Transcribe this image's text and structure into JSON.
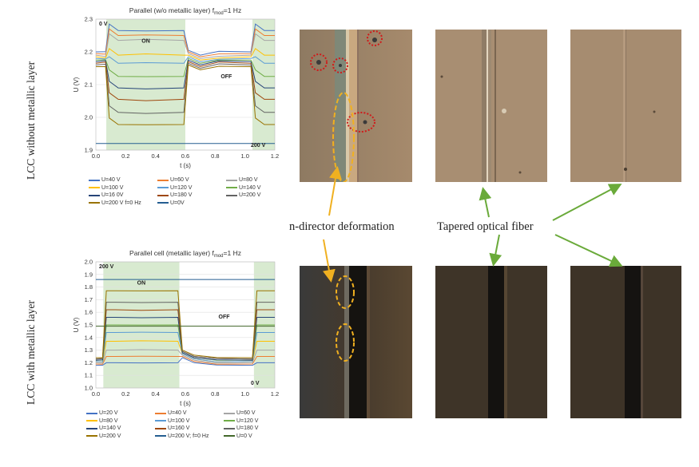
{
  "side_labels": {
    "top": "LCC without metallic layer",
    "bottom": "LCC with metallic layer"
  },
  "captions": {
    "left": "n-director deformation",
    "right": "Tapered optical fiber"
  },
  "colors": {
    "on_region": "#d8ead0",
    "photo_top": "#a0866a",
    "photo_bottom": "#3b3226",
    "dotted_circle": "#d01a1a",
    "dashed_ellipse": "#f0b020",
    "arrow_yellow": "#f0b020",
    "arrow_green": "#6aaa3a"
  },
  "chart_data": [
    {
      "type": "line",
      "title_main": "Parallel (w/o metallic layer) f",
      "title_sub": "mod",
      "title_tail": "=1 Hz",
      "xlabel": "t (s)",
      "ylabel": "U (V)",
      "xlim": [
        0.0,
        1.2
      ],
      "ylim": [
        1.9,
        2.3
      ],
      "xticks": [
        "0.0",
        "0.2",
        "0.4",
        "0.6",
        "0.8",
        "1.0",
        "1.2"
      ],
      "yticks": [
        "1.9",
        "2.0",
        "2.1",
        "2.2",
        "2.3"
      ],
      "on_regions": [
        [
          0.07,
          0.6
        ],
        [
          1.05,
          1.2
        ]
      ],
      "annotations": {
        "top_left": "0 V",
        "on": "ON",
        "off": "OFF",
        "bottom_right": "200 V"
      },
      "legend": [
        "U=40 V",
        "U=60 V",
        "U=80 V",
        "U=100 V",
        "U=120 V",
        "U=140 V",
        "U=16 0V",
        "U=180 V",
        "U=200 V",
        "U=200 V f=0 Hz",
        "U=0V"
      ],
      "series": [
        {
          "name": "U=40 V",
          "color": "#4472c4",
          "on": 2.265,
          "off": 2.2
        },
        {
          "name": "U=60 V",
          "color": "#ed7d31",
          "on": 2.25,
          "off": 2.195
        },
        {
          "name": "U=80 V",
          "color": "#a5a5a5",
          "on": 2.235,
          "off": 2.19
        },
        {
          "name": "U=100 V",
          "color": "#ffc000",
          "on": 2.19,
          "off": 2.185
        },
        {
          "name": "U=120 V",
          "color": "#5b9bd5",
          "on": 2.165,
          "off": 2.18
        },
        {
          "name": "U=140 V",
          "color": "#70ad47",
          "on": 2.125,
          "off": 2.175
        },
        {
          "name": "U=16 0V",
          "color": "#264478",
          "on": 2.09,
          "off": 2.17
        },
        {
          "name": "U=180 V",
          "color": "#9e480e",
          "on": 2.055,
          "off": 2.165
        },
        {
          "name": "U=200 V",
          "color": "#636363",
          "on": 2.015,
          "off": 2.16
        },
        {
          "name": "U=200 V f=0 Hz",
          "color": "#997300",
          "on": 1.978,
          "off": 2.155
        },
        {
          "name": "U=0V",
          "color": "#255e91",
          "on": 1.92,
          "off": 1.92
        }
      ]
    },
    {
      "type": "line",
      "title_main": "Parallel cell (metallic layer) f",
      "title_sub": "mod",
      "title_tail": "=1 Hz",
      "xlabel": "t (s)",
      "ylabel": "U (V)",
      "xlim": [
        0.0,
        1.2
      ],
      "ylim": [
        1.0,
        2.0
      ],
      "xticks": [
        "0.0",
        "0.2",
        "0.4",
        "0.6",
        "0.8",
        "1.0",
        "1.2"
      ],
      "yticks": [
        "1.0",
        "1.1",
        "1.2",
        "1.3",
        "1.4",
        "1.5",
        "1.6",
        "1.7",
        "1.8",
        "1.9",
        "2.0"
      ],
      "on_regions": [
        [
          0.05,
          0.56
        ],
        [
          1.06,
          1.2
        ]
      ],
      "annotations": {
        "top_left": "200 V",
        "on": "ON",
        "off": "OFF",
        "bottom_right": "0 V"
      },
      "legend": [
        "U=20 V",
        "U=40 V",
        "U=60 V",
        "U=80 V",
        "U=100 V",
        "U=120 V",
        "U=140 V",
        "U=160 V",
        "U=180 V",
        "U=200 V",
        "U=200 V; f=0 Hz",
        "U=0 V"
      ],
      "series": [
        {
          "name": "U=20 V",
          "color": "#4472c4",
          "on": 1.2,
          "off": 1.18
        },
        {
          "name": "U=40 V",
          "color": "#ed7d31",
          "on": 1.25,
          "off": 1.19
        },
        {
          "name": "U=60 V",
          "color": "#a5a5a5",
          "on": 1.3,
          "off": 1.2
        },
        {
          "name": "U=80 V",
          "color": "#ffc000",
          "on": 1.37,
          "off": 1.21
        },
        {
          "name": "U=100 V",
          "color": "#5b9bd5",
          "on": 1.44,
          "off": 1.21
        },
        {
          "name": "U=120 V",
          "color": "#70ad47",
          "on": 1.5,
          "off": 1.22
        },
        {
          "name": "U=140 V",
          "color": "#264478",
          "on": 1.56,
          "off": 1.22
        },
        {
          "name": "U=160 V",
          "color": "#9e480e",
          "on": 1.62,
          "off": 1.23
        },
        {
          "name": "U=180 V",
          "color": "#636363",
          "on": 1.68,
          "off": 1.23
        },
        {
          "name": "U=200 V",
          "color": "#997300",
          "on": 1.77,
          "off": 1.24
        },
        {
          "name": "U=200 V; f=0 Hz",
          "color": "#255e91",
          "on": 1.86,
          "off": 1.86
        },
        {
          "name": "U=0 V",
          "color": "#43682b",
          "on": 1.49,
          "off": 1.49
        }
      ]
    }
  ]
}
